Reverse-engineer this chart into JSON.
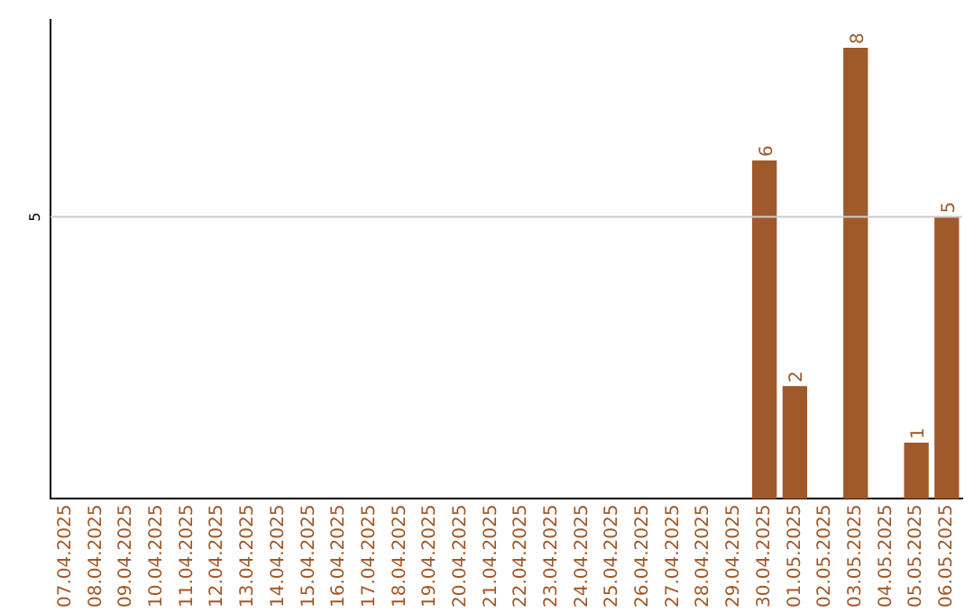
{
  "chart_data": {
    "type": "bar",
    "categories": [
      "07.04.2025",
      "08.04.2025",
      "09.04.2025",
      "10.04.2025",
      "11.04.2025",
      "12.04.2025",
      "13.04.2025",
      "14.04.2025",
      "15.04.2025",
      "16.04.2025",
      "17.04.2025",
      "18.04.2025",
      "19.04.2025",
      "20.04.2025",
      "21.04.2025",
      "22.04.2025",
      "23.04.2025",
      "24.04.2025",
      "25.04.2025",
      "26.04.2025",
      "27.04.2025",
      "28.04.2025",
      "29.04.2025",
      "30.04.2025",
      "01.05.2025",
      "02.05.2025",
      "03.05.2025",
      "04.05.2025",
      "05.05.2025",
      "06.05.2025"
    ],
    "values": [
      null,
      null,
      null,
      null,
      null,
      null,
      null,
      null,
      null,
      null,
      null,
      null,
      null,
      null,
      null,
      null,
      null,
      null,
      null,
      null,
      null,
      null,
      null,
      6,
      2,
      null,
      8,
      null,
      1,
      5
    ],
    "data_labels": true,
    "color": "#a0592a",
    "ylim": [
      0,
      8.5
    ],
    "ref_lines": [
      {
        "axis": "y",
        "value": 5,
        "label": "5",
        "color": "#cccccc"
      }
    ],
    "legend": false
  }
}
